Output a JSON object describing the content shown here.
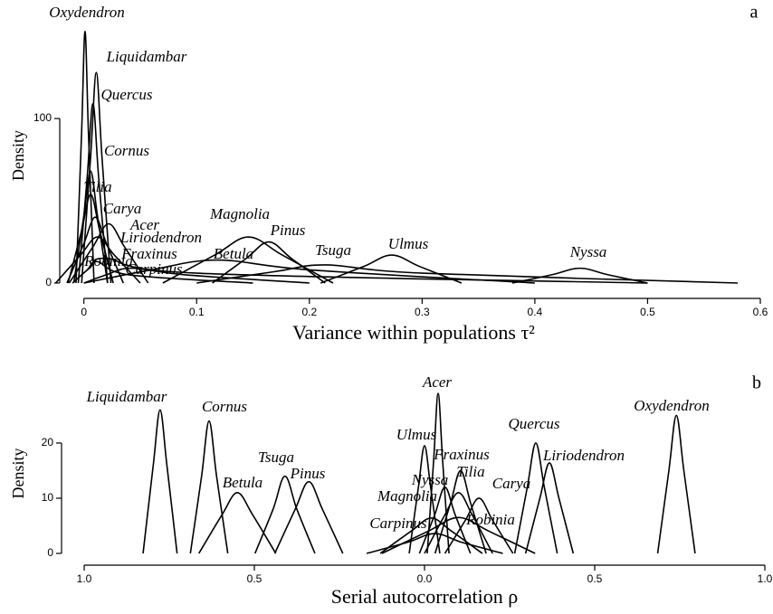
{
  "chart_data": [
    {
      "type": "line",
      "panel_label": "a",
      "x_label": "Variance within populations τ²",
      "y_label": "Density",
      "color": "#000000",
      "xlim": [
        -0.015,
        0.6
      ],
      "ylim": [
        0,
        155
      ],
      "xticks": [
        0,
        0.1,
        0.2,
        0.3,
        0.4,
        0.5,
        0.6
      ],
      "yticks": [
        0,
        100
      ],
      "series": [
        {
          "name": "Oxydendron",
          "x": [
            -0.007,
            -0.002,
            0.001,
            0.004,
            0.009
          ],
          "values": [
            0,
            92,
            153,
            92,
            0
          ]
        },
        {
          "name": "Liquidambar",
          "x": [
            -0.002,
            0.006,
            0.011,
            0.016,
            0.024
          ],
          "values": [
            0,
            77,
            128,
            77,
            0
          ]
        },
        {
          "name": "Quercus",
          "x": [
            -0.005,
            0.003,
            0.008,
            0.013,
            0.021
          ],
          "values": [
            0,
            65,
            109,
            65,
            0
          ]
        },
        {
          "name": "Cornus",
          "x": [
            -0.009,
            0,
            0.006,
            0.012,
            0.021
          ],
          "values": [
            0,
            41,
            68,
            41,
            0
          ]
        },
        {
          "name": "Tilia",
          "x": [
            -0.014,
            -0.002,
            0.006,
            0.014,
            0.026
          ],
          "values": [
            0,
            32,
            54,
            32,
            0
          ]
        },
        {
          "name": "Carya",
          "x": [
            -0.015,
            0,
            0.01,
            0.02,
            0.035
          ],
          "values": [
            0,
            24,
            40,
            24,
            0
          ]
        },
        {
          "name": "Acer",
          "x": [
            -0.013,
            0.008,
            0.022,
            0.036,
            0.057
          ],
          "values": [
            0,
            22,
            36,
            22,
            0
          ]
        },
        {
          "name": "Liriodendron",
          "x": [
            -0.025,
            -0.003,
            0.012,
            0.027,
            0.05
          ],
          "values": [
            0,
            17,
            28,
            17,
            0
          ]
        },
        {
          "name": "Fraxinus",
          "x": [
            -0.01,
            0.005,
            0.02,
            0.1,
            0.5
          ],
          "values": [
            0,
            9,
            15,
            6,
            0
          ]
        },
        {
          "name": "Betula",
          "x": [
            0.0,
            0.06,
            0.118,
            0.2,
            0.4
          ],
          "values": [
            0,
            8,
            14,
            8,
            0
          ]
        },
        {
          "name": "Robinia",
          "x": [
            -0.01,
            0.003,
            0.012,
            0.04,
            0.15
          ],
          "values": [
            0,
            8,
            13,
            5,
            0
          ]
        },
        {
          "name": "Carpinus",
          "x": [
            0.0,
            0.02,
            0.042,
            0.09,
            0.2
          ],
          "values": [
            0,
            5,
            9,
            5,
            0
          ]
        },
        {
          "name": "Magnolia",
          "x": [
            0.07,
            0.116,
            0.146,
            0.176,
            0.221
          ],
          "values": [
            0,
            17,
            28,
            17,
            0
          ]
        },
        {
          "name": "Pinus",
          "x": [
            0.114,
            0.144,
            0.164,
            0.184,
            0.214
          ],
          "values": [
            0,
            15,
            25,
            15,
            0
          ]
        },
        {
          "name": "Tsuga",
          "x": [
            0.1,
            0.17,
            0.215,
            0.3,
            0.58
          ],
          "values": [
            0,
            7,
            11,
            6,
            0
          ]
        },
        {
          "name": "Ulmus",
          "x": [
            0.21,
            0.248,
            0.273,
            0.298,
            0.335
          ],
          "values": [
            0,
            10,
            17,
            10,
            0
          ]
        },
        {
          "name": "Nyssa",
          "x": [
            0.38,
            0.415,
            0.44,
            0.465,
            0.5
          ],
          "values": [
            0,
            5,
            9,
            5,
            0
          ]
        }
      ]
    },
    {
      "type": "line",
      "panel_label": "b",
      "x_label": "Serial autocorrelation ρ",
      "y_label": "Density",
      "color": "#000000",
      "xlim": [
        -1,
        1
      ],
      "ylim": [
        0,
        29
      ],
      "xticks": [
        {
          "value": -1,
          "label": "1.0"
        },
        {
          "value": -0.5,
          "label": "0.5"
        },
        {
          "value": 0,
          "label": "0.0"
        },
        0.5,
        {
          "value": 1,
          "label": "1.0"
        }
      ],
      "yticks": [
        0,
        10,
        20
      ],
      "series": [
        {
          "name": "Liquidambar",
          "x": [
            -0.827,
            -0.797,
            -0.777,
            -0.757,
            -0.727
          ],
          "values": [
            0,
            16,
            26,
            16,
            0
          ]
        },
        {
          "name": "Cornus",
          "x": [
            -0.688,
            -0.655,
            -0.633,
            -0.611,
            -0.578
          ],
          "values": [
            0,
            14,
            24,
            14,
            0
          ]
        },
        {
          "name": "Betula",
          "x": [
            -0.663,
            -0.595,
            -0.55,
            -0.505,
            -0.437
          ],
          "values": [
            0,
            7,
            11,
            7,
            0
          ]
        },
        {
          "name": "Tsuga",
          "x": [
            -0.498,
            -0.445,
            -0.41,
            -0.375,
            -0.322
          ],
          "values": [
            0,
            8,
            14,
            8,
            0
          ]
        },
        {
          "name": "Pinus",
          "x": [
            -0.44,
            -0.38,
            -0.34,
            -0.3,
            -0.24
          ],
          "values": [
            0,
            8,
            13,
            8,
            0
          ]
        },
        {
          "name": "Acer",
          "x": [
            0.008,
            0.027,
            0.04,
            0.053,
            0.072
          ],
          "values": [
            0,
            17,
            29,
            17,
            0
          ]
        },
        {
          "name": "Ulmus",
          "x": [
            -0.045,
            -0.018,
            0,
            0.018,
            0.045
          ],
          "values": [
            0,
            12,
            19.5,
            12,
            0
          ]
        },
        {
          "name": "Fraxinus",
          "x": [
            0.031,
            0.076,
            0.106,
            0.136,
            0.181
          ],
          "values": [
            0,
            9,
            15,
            9,
            0
          ]
        },
        {
          "name": "Nyssa",
          "x": [
            -0.015,
            0.03,
            0.06,
            0.09,
            0.135
          ],
          "values": [
            0,
            7,
            12,
            7,
            0
          ]
        },
        {
          "name": "Tilia",
          "x": [
            0,
            0.06,
            0.1,
            0.14,
            0.2
          ],
          "values": [
            0,
            7,
            11,
            7,
            0
          ]
        },
        {
          "name": "Magnolia",
          "x": [
            -0.13,
            -0.04,
            0.02,
            0.08,
            0.17
          ],
          "values": [
            0,
            4,
            6.4,
            4,
            0
          ]
        },
        {
          "name": "Carpinus",
          "x": [
            -0.17,
            -0.05,
            0.03,
            0.11,
            0.23
          ],
          "values": [
            0,
            2,
            3.6,
            2,
            0
          ]
        },
        {
          "name": "Robinia",
          "x": [
            -0.125,
            0.01,
            0.1,
            0.19,
            0.325
          ],
          "values": [
            0,
            4,
            6.5,
            4,
            0
          ]
        },
        {
          "name": "Carya",
          "x": [
            0.06,
            0.12,
            0.16,
            0.2,
            0.26
          ],
          "values": [
            0,
            6,
            10,
            6,
            0
          ]
        },
        {
          "name": "Quercus",
          "x": [
            0.265,
            0.302,
            0.327,
            0.352,
            0.39
          ],
          "values": [
            0,
            12,
            20,
            12,
            0
          ]
        },
        {
          "name": "Liriodendron",
          "x": [
            0.297,
            0.339,
            0.367,
            0.395,
            0.437
          ],
          "values": [
            0,
            10,
            16.4,
            10,
            0
          ]
        },
        {
          "name": "Oxydendron",
          "x": [
            0.685,
            0.718,
            0.74,
            0.762,
            0.795
          ],
          "values": [
            0,
            15,
            25,
            15,
            0
          ]
        }
      ]
    }
  ]
}
